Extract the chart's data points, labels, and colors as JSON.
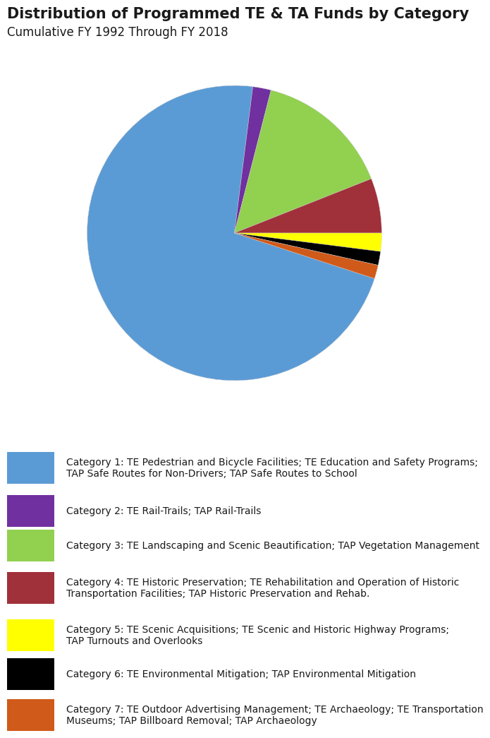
{
  "title": "Distribution of Programmed TE & TA Funds by Category",
  "subtitle": "Cumulative FY 1992 Through FY 2018",
  "background_color": "#ffffff",
  "pie_colors": [
    "#5b9bd5",
    "#7030a0",
    "#92d050",
    "#a0303a",
    "#ffff00",
    "#000000",
    "#d05a1a"
  ],
  "pie_values": [
    72,
    2,
    15,
    6,
    2,
    1.5,
    1.5
  ],
  "categories": [
    "Category 1: TE Pedestrian and Bicycle Facilities; TE Education and Safety Programs;\n    TAP Safe Routes for Non-Drivers; TAP Safe Routes to School",
    "Category 2: TE Rail-Trails; TAP Rail-Trails",
    "Category 3: TE Landscaping and Scenic Beautification; TAP Vegetation Management",
    "Category 4: TE Historic Preservation; TE Rehabilitation and Operation of Historic\n    Transportation Facilities; TAP Historic Preservation and Rehab.",
    "Category 5: TE Scenic Acquisitions; TE Scenic and Historic Highway Programs;\n    TAP Turnouts and Overlooks",
    "Category 6: TE Environmental Mitigation; TAP Environmental Mitigation",
    "Category 7: TE Outdoor Advertising Management; TE Archaeology; TE Transportation\n    Museums; TAP Billboard Removal; TAP Archaeology"
  ],
  "legend_colors": [
    "#5b9bd5",
    "#7030a0",
    "#92d050",
    "#a0303a",
    "#ffff00",
    "#000000",
    "#d05a1a"
  ],
  "title_fontsize": 15,
  "subtitle_fontsize": 12,
  "legend_fontsize": 10.0,
  "startangle": -18,
  "counterclock": false
}
